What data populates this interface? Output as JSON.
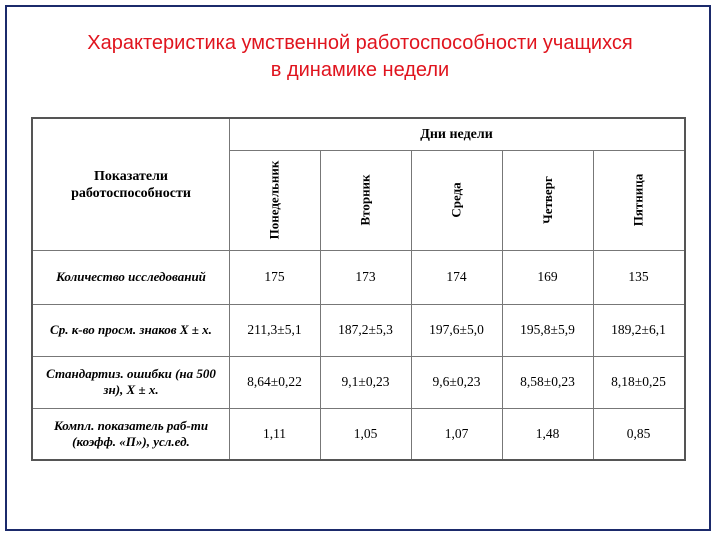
{
  "title": {
    "line1": "Характеристика умственной работоспособности учащихся",
    "line2": "в динамике недели"
  },
  "table": {
    "indicator_header_line1": "Показатели",
    "indicator_header_line2": "работоспособности",
    "days_header": "Дни недели",
    "days": [
      "Понедельник",
      "Вторник",
      "Среда",
      "Четверг",
      "Пятница"
    ],
    "rows": [
      {
        "label": "Количество исследований",
        "values": [
          "175",
          "173",
          "174",
          "169",
          "135"
        ]
      },
      {
        "label": "Ср. к-во просм. знаков X ± x.",
        "values": [
          "211,3±5,1",
          "187,2±5,3",
          "197,6±5,0",
          "195,8±5,9",
          "189,2±6,1"
        ]
      },
      {
        "label": "Стандартиз. ошибки (на 500 зн), X ± x.",
        "values": [
          "8,64±0,22",
          "9,1±0,23",
          "9,6±0,23",
          "8,58±0,23",
          "8,18±0,25"
        ]
      },
      {
        "label": "Компл. показатель раб-ти (коэфф. «П»), усл.ед.",
        "values": [
          "1,11",
          "1,05",
          "1,07",
          "1,48",
          "0,85"
        ]
      }
    ]
  }
}
